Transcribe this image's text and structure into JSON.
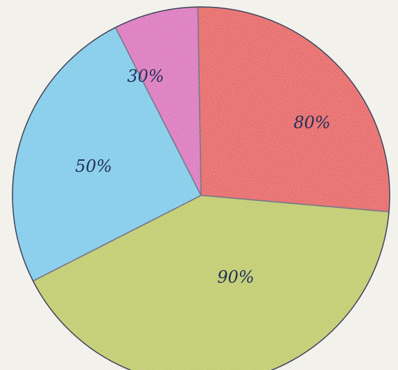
{
  "chart_data": {
    "type": "pie",
    "title": "",
    "slices": [
      {
        "label": "80%",
        "color": "#e4231f"
      },
      {
        "label": "90%",
        "color": "#b7c530"
      },
      {
        "label": "50%",
        "color": "#5fc4e8"
      },
      {
        "label": "30%",
        "color": "#d84fb5"
      }
    ],
    "legend": "none"
  }
}
